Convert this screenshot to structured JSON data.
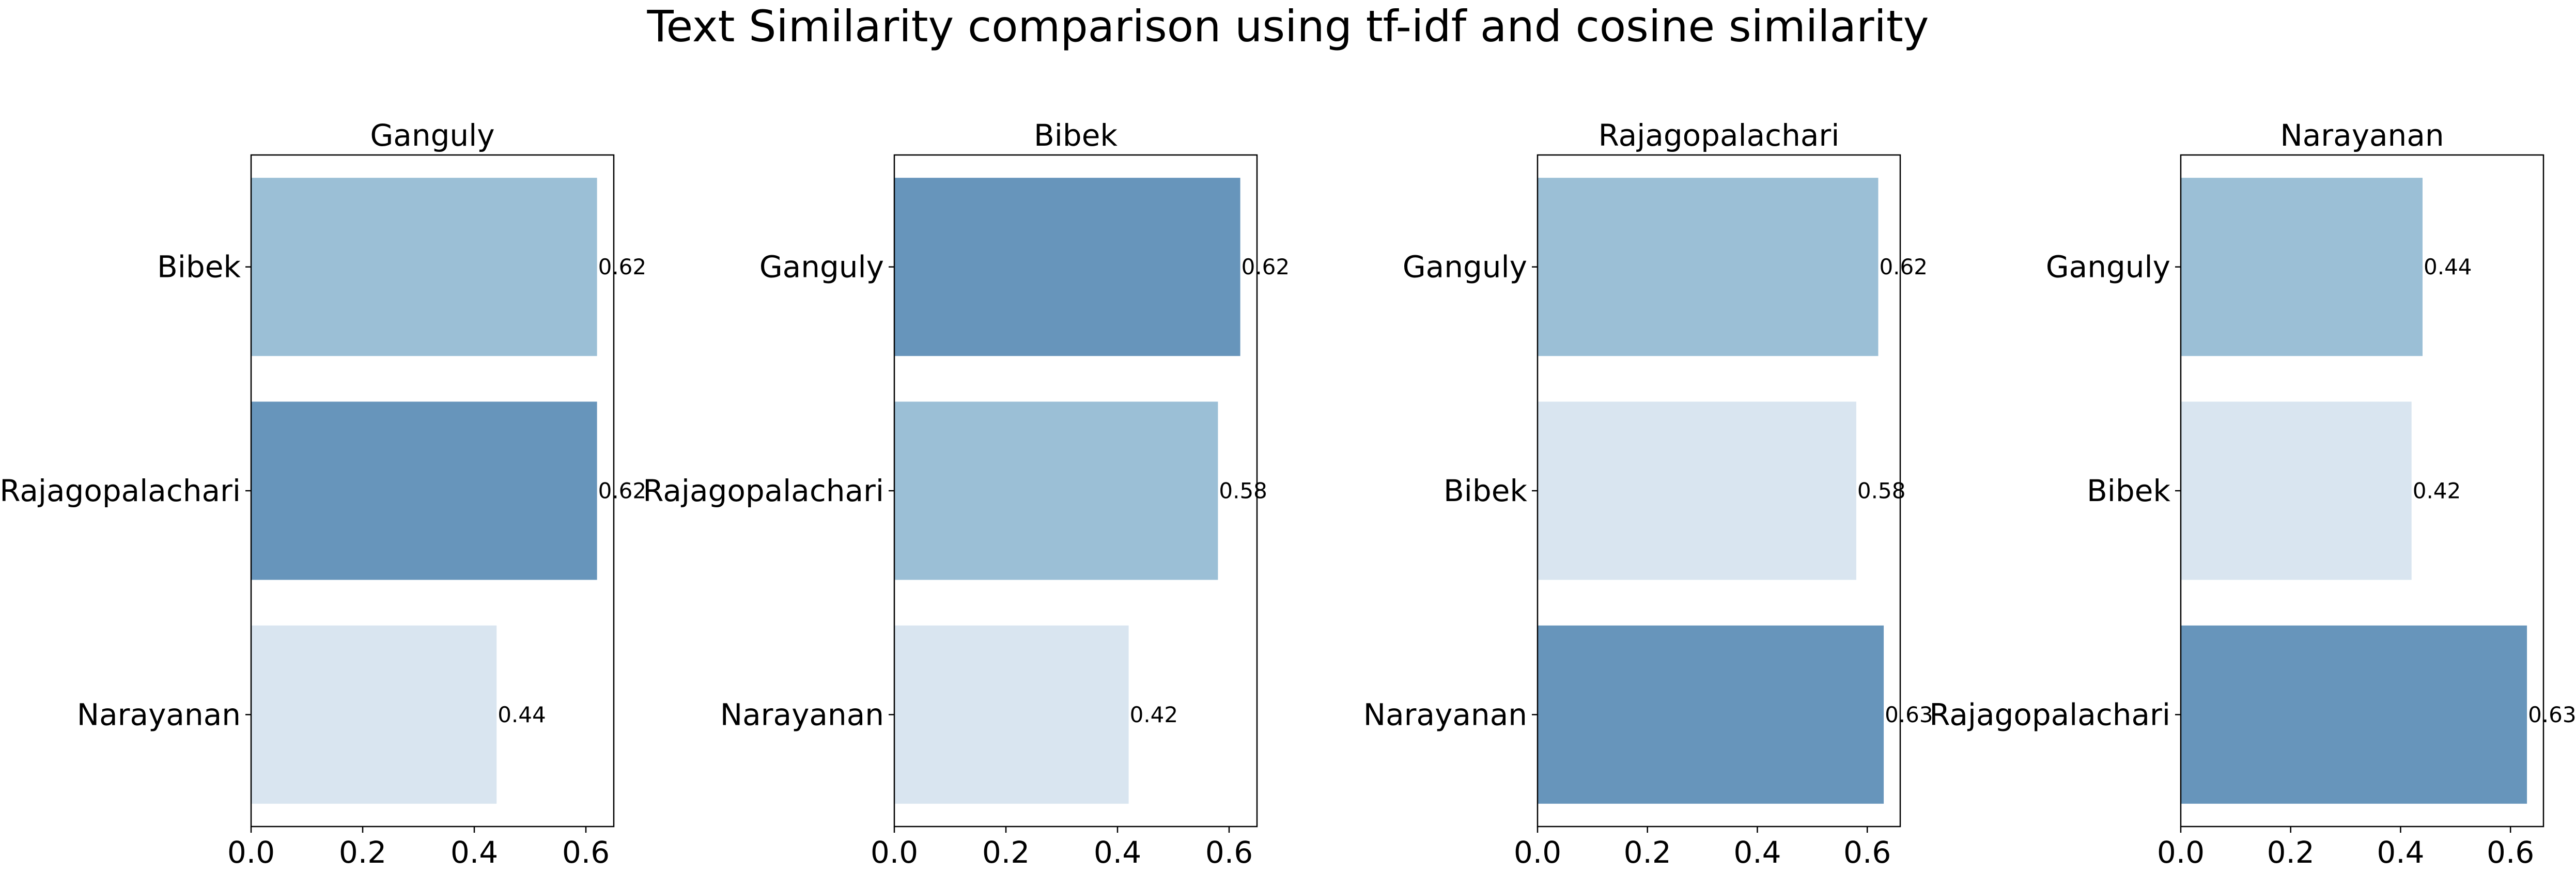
{
  "title": "Text Similarity comparison using tf-idf and cosine similarity",
  "palette": {
    "low": "#d9e5f0",
    "mid": "#9bbfd6",
    "high": "#6795bb"
  },
  "chart_data": [
    {
      "type": "bar",
      "orientation": "horizontal",
      "title": "Ganguly",
      "categories": [
        "Bibek",
        "Rajagopalachari",
        "Narayanan"
      ],
      "values": [
        0.62,
        0.62,
        0.44
      ],
      "value_labels": [
        "0.62",
        "0.62",
        "0.44"
      ],
      "colors": [
        "#9bbfd6",
        "#6795bb",
        "#d9e5f0"
      ],
      "xlim": [
        0,
        0.65
      ],
      "xticks": [
        0.0,
        0.2,
        0.4,
        0.6
      ],
      "xtick_labels": [
        "0.0",
        "0.2",
        "0.4",
        "0.6"
      ]
    },
    {
      "type": "bar",
      "orientation": "horizontal",
      "title": "Bibek",
      "categories": [
        "Ganguly",
        "Rajagopalachari",
        "Narayanan"
      ],
      "values": [
        0.62,
        0.58,
        0.42
      ],
      "value_labels": [
        "0.62",
        "0.58",
        "0.42"
      ],
      "colors": [
        "#6795bb",
        "#9bbfd6",
        "#d9e5f0"
      ],
      "xlim": [
        0,
        0.65
      ],
      "xticks": [
        0.0,
        0.2,
        0.4,
        0.6
      ],
      "xtick_labels": [
        "0.0",
        "0.2",
        "0.4",
        "0.6"
      ]
    },
    {
      "type": "bar",
      "orientation": "horizontal",
      "title": "Rajagopalachari",
      "categories": [
        "Ganguly",
        "Bibek",
        "Narayanan"
      ],
      "values": [
        0.62,
        0.58,
        0.63
      ],
      "value_labels": [
        "0.62",
        "0.58",
        "0.63"
      ],
      "colors": [
        "#9bbfd6",
        "#d9e5f0",
        "#6795bb"
      ],
      "xlim": [
        0,
        0.66
      ],
      "xticks": [
        0.0,
        0.2,
        0.4,
        0.6
      ],
      "xtick_labels": [
        "0.0",
        "0.2",
        "0.4",
        "0.6"
      ]
    },
    {
      "type": "bar",
      "orientation": "horizontal",
      "title": "Narayanan",
      "categories": [
        "Ganguly",
        "Bibek",
        "Rajagopalachari"
      ],
      "values": [
        0.44,
        0.42,
        0.63
      ],
      "value_labels": [
        "0.44",
        "0.42",
        "0.63"
      ],
      "colors": [
        "#9bbfd6",
        "#d9e5f0",
        "#6795bb"
      ],
      "xlim": [
        0,
        0.66
      ],
      "xticks": [
        0.0,
        0.2,
        0.4,
        0.6
      ],
      "xtick_labels": [
        "0.0",
        "0.2",
        "0.4",
        "0.6"
      ]
    }
  ]
}
